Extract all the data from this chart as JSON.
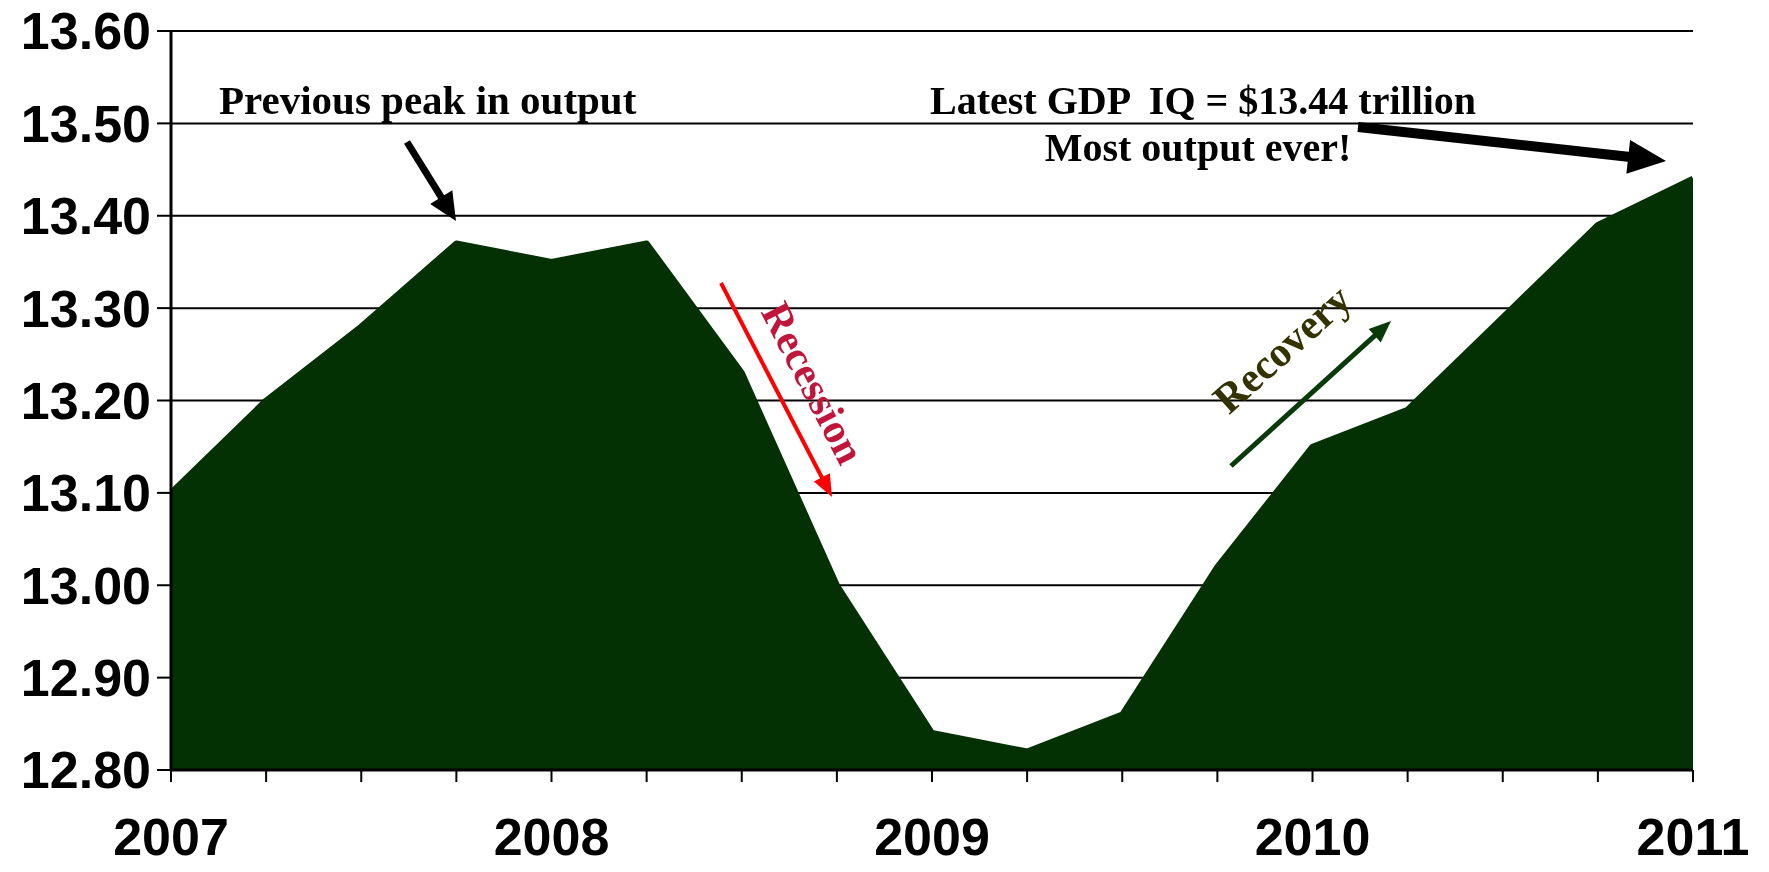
{
  "chart_data": {
    "type": "area",
    "categories": [
      "2007",
      null,
      null,
      null,
      "2008",
      null,
      null,
      null,
      "2009",
      null,
      null,
      null,
      "2010",
      null,
      null,
      null,
      "2011"
    ],
    "values": [
      13.1,
      13.2,
      13.28,
      13.37,
      13.35,
      13.37,
      13.23,
      13.0,
      12.84,
      12.82,
      12.86,
      13.02,
      13.15,
      13.19,
      13.29,
      13.39,
      13.44
    ],
    "color": "#033103",
    "ylim": [
      12.8,
      13.6
    ],
    "yticks": [
      {
        "value": 12.8,
        "label": "12.80"
      },
      {
        "value": 12.9,
        "label": "12.90"
      },
      {
        "value": 13.0,
        "label": "13.00"
      },
      {
        "value": 13.1,
        "label": "13.10"
      },
      {
        "value": 13.2,
        "label": "13.20"
      },
      {
        "value": 13.3,
        "label": "13.30"
      },
      {
        "value": 13.4,
        "label": "13.40"
      },
      {
        "value": 13.5,
        "label": "13.50"
      },
      {
        "value": 13.6,
        "label": "13.60"
      }
    ],
    "grid": "y",
    "annotations": [
      "Previous peak in output",
      "Latest GDP  IQ = $13.44 trillion",
      "Most output ever!",
      "Recession",
      "Recovery"
    ]
  }
}
